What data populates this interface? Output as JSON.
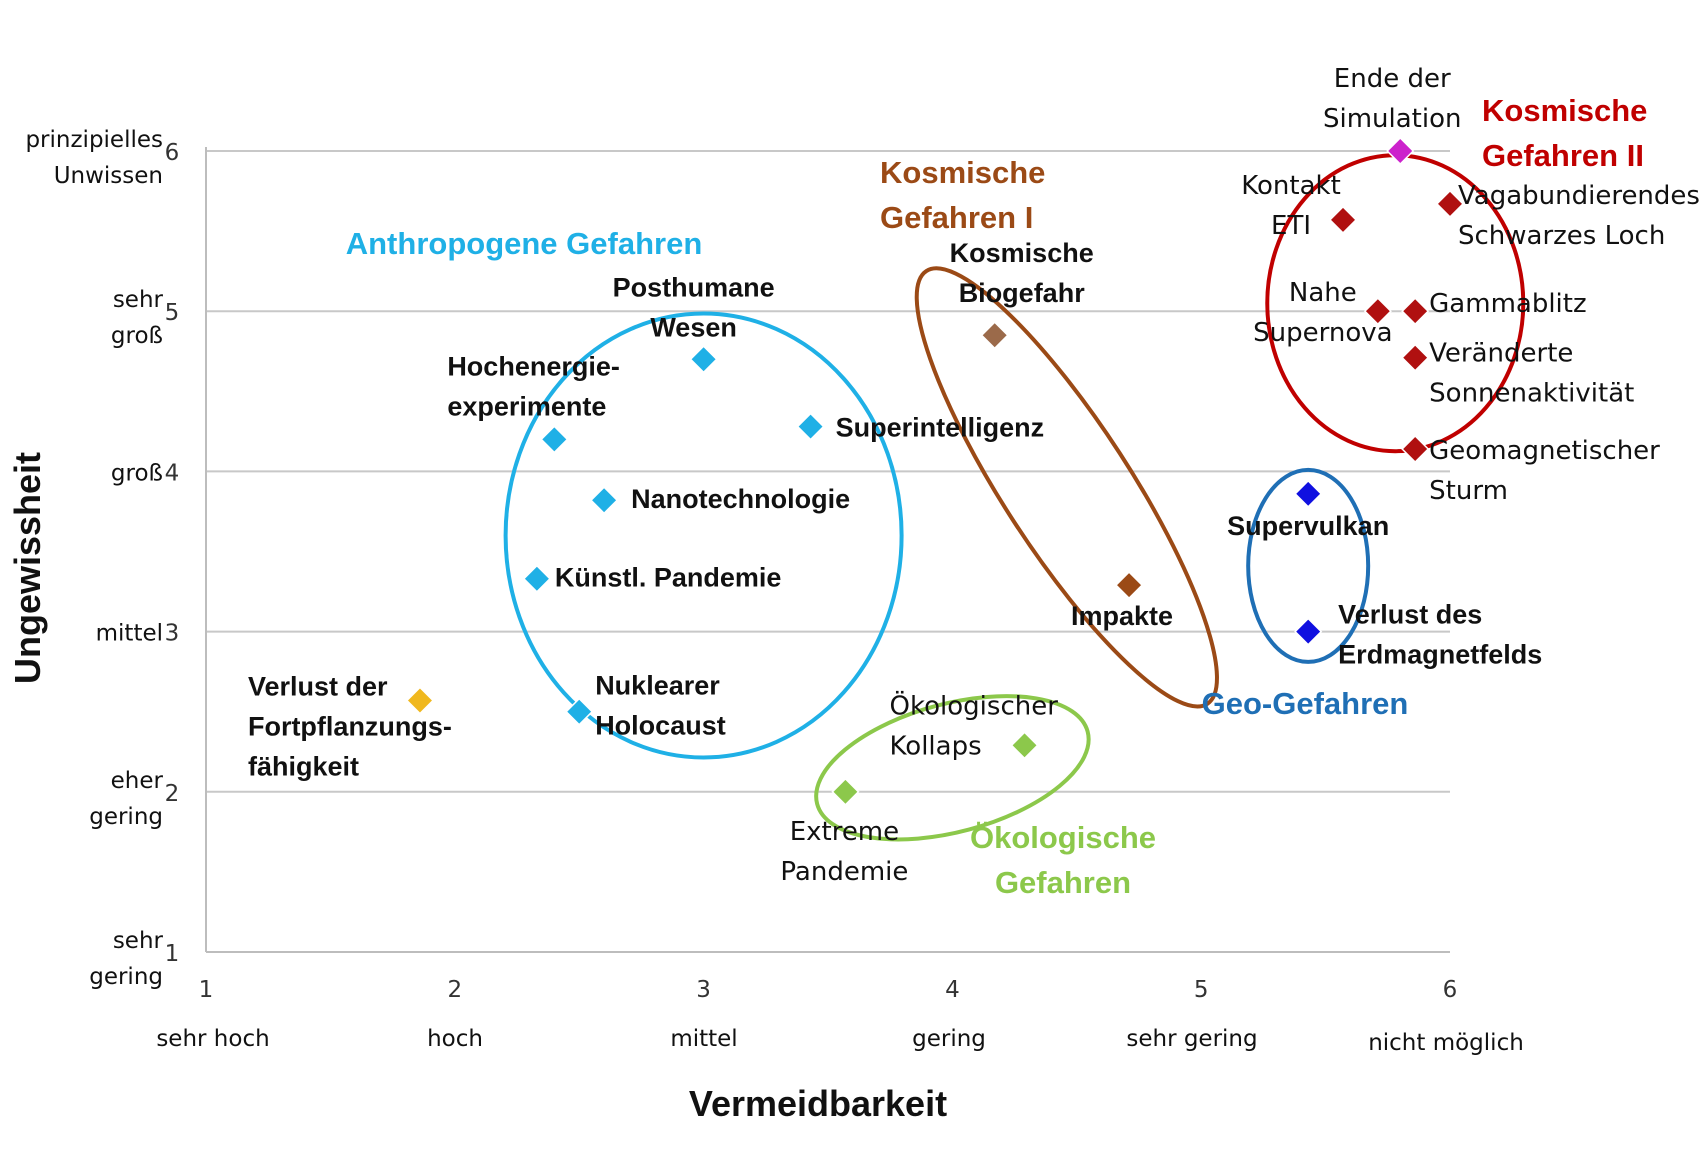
{
  "chart_data": {
    "type": "scatter",
    "xlabel": "Vermeidbarkeit",
    "ylabel": "Ungewissheit",
    "xlim": [
      1,
      6
    ],
    "ylim": [
      1,
      6
    ],
    "x_ticks": [
      "1",
      "2",
      "3",
      "4",
      "5",
      "6"
    ],
    "y_ticks": [
      "1",
      "2",
      "3",
      "4",
      "5",
      "6"
    ],
    "x_categories": [
      "sehr hoch",
      "hoch",
      "mittel",
      "gering",
      "sehr gering",
      "nicht möglich"
    ],
    "y_categories": [
      [
        "sehr",
        "gering"
      ],
      [
        "eher",
        "gering"
      ],
      [
        "mittel"
      ],
      [
        "groß"
      ],
      [
        "sehr",
        "groß"
      ],
      [
        "prinzipielles",
        "Unwissen"
      ]
    ],
    "grid": true,
    "groups": [
      {
        "label": [
          "Anthropogene Gefahren"
        ],
        "color": "#1fb0e6"
      },
      {
        "label": [
          "Kosmische",
          "Gefahren I"
        ],
        "color": "#9b4a16"
      },
      {
        "label": [
          "Kosmische",
          "Gefahren II"
        ],
        "color": "#c00000"
      },
      {
        "label": [
          "Geo-Gefahren"
        ],
        "color": "#1f6fb5"
      },
      {
        "label": [
          "Ökologische",
          "Gefahren"
        ],
        "color": "#8cc84b"
      }
    ],
    "points": [
      {
        "label": [
          "Posthumane",
          "Wesen"
        ],
        "x": 3.0,
        "y": 4.7,
        "color": "#1fb0e6",
        "bold": true
      },
      {
        "label": [
          "Hochenergie-",
          "experimente"
        ],
        "x": 2.4,
        "y": 4.2,
        "color": "#1fb0e6",
        "bold": true
      },
      {
        "label": [
          "Superintelligenz"
        ],
        "x": 3.43,
        "y": 4.28,
        "color": "#1fb0e6",
        "bold": true
      },
      {
        "label": [
          "Nanotechnologie"
        ],
        "x": 2.6,
        "y": 3.82,
        "color": "#1fb0e6",
        "bold": true
      },
      {
        "label": [
          "Künstl. Pandemie"
        ],
        "x": 2.33,
        "y": 3.33,
        "color": "#1fb0e6",
        "bold": true
      },
      {
        "label": [
          "Nuklearer",
          "Holocaust"
        ],
        "x": 2.5,
        "y": 2.5,
        "color": "#1fb0e6",
        "bold": true
      },
      {
        "label": [
          "Verlust der",
          "Fortpflanzungs-",
          "fähigkeit"
        ],
        "x": 1.86,
        "y": 2.57,
        "color": "#f0b81e",
        "bold": true
      },
      {
        "label": [
          "Kosmische",
          "Biogefahr"
        ],
        "x": 4.17,
        "y": 4.85,
        "color": "#9b6a4a",
        "bold": true
      },
      {
        "label": [
          "Impakte"
        ],
        "x": 4.71,
        "y": 3.29,
        "color": "#9b4a16",
        "bold": true
      },
      {
        "label": [
          "Ökologischer",
          "Kollaps"
        ],
        "x": 4.29,
        "y": 2.29,
        "color": "#8cc84b",
        "bold": false
      },
      {
        "label": [
          "Extreme",
          "Pandemie"
        ],
        "x": 3.57,
        "y": 2.0,
        "color": "#8cc84b",
        "bold": false
      },
      {
        "label": [
          "Supervulkan"
        ],
        "x": 5.43,
        "y": 3.86,
        "color": "#1010e0",
        "bold": true
      },
      {
        "label": [
          "Verlust des",
          "Erdmagnetfelds"
        ],
        "x": 5.43,
        "y": 3.0,
        "color": "#1010e0",
        "bold": true
      },
      {
        "label": [
          "Ende der",
          "Simulation"
        ],
        "x": 5.8,
        "y": 6.0,
        "color": "#cc22cc",
        "bold": false
      },
      {
        "label": [
          "Kontakt",
          "ETI"
        ],
        "x": 5.57,
        "y": 5.57,
        "color": "#b01010",
        "bold": false
      },
      {
        "label": [
          "Vagabundierendes",
          "Schwarzes Loch"
        ],
        "x": 6.0,
        "y": 5.67,
        "color": "#b01010",
        "bold": false
      },
      {
        "label": [
          "Nahe",
          "Supernova"
        ],
        "x": 5.71,
        "y": 5.0,
        "color": "#b01010",
        "bold": false
      },
      {
        "label": [
          "Gammablitz"
        ],
        "x": 5.86,
        "y": 5.0,
        "color": "#b01010",
        "bold": false
      },
      {
        "label": [
          "Veränderte",
          "Sonnenaktivität"
        ],
        "x": 5.86,
        "y": 4.71,
        "color": "#b01010",
        "bold": false
      },
      {
        "label": [
          "Geomagnetischer",
          "Sturm"
        ],
        "x": 5.86,
        "y": 4.14,
        "color": "#b01010",
        "bold": false
      }
    ]
  }
}
